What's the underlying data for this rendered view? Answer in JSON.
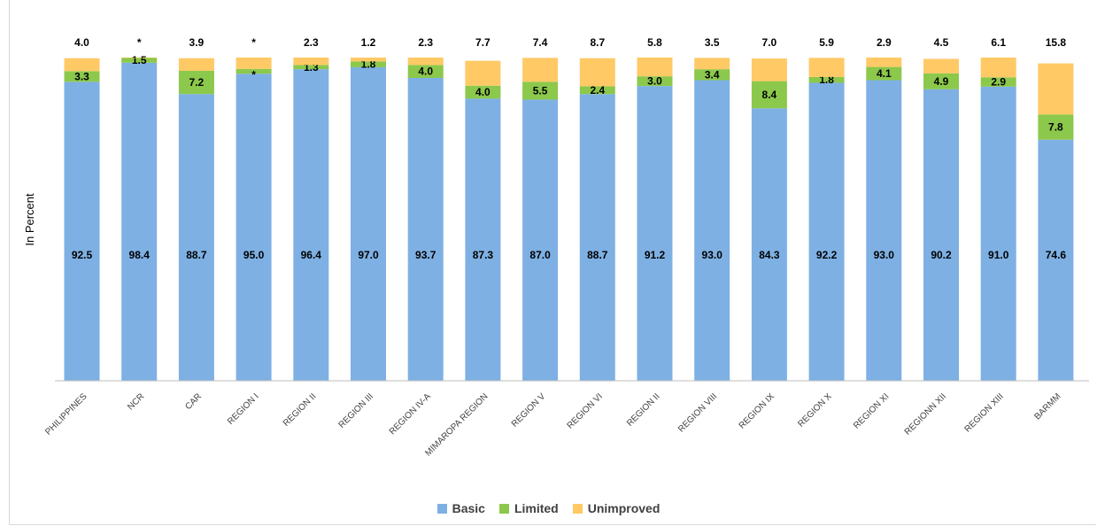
{
  "chart_data": {
    "type": "bar",
    "stacked": true,
    "ylabel": "In Percent",
    "categories": [
      "PHILIPPINES",
      "NCR",
      "CAR",
      "REGION I",
      "REGION II",
      "REGION III",
      "REGION IV-A",
      "MIMAROPA REGION",
      "REGION V",
      "REGION VI",
      "REGION II",
      "REGION VIII",
      "REGION IX",
      "REGION X",
      "REGION XI",
      "REGIONN XII",
      "REGION XIII",
      "BARMM"
    ],
    "series": [
      {
        "name": "Basic",
        "color": "#7eb0e4",
        "values": [
          92.5,
          98.4,
          88.7,
          95.0,
          96.4,
          97.0,
          93.7,
          87.3,
          87.0,
          88.7,
          91.2,
          93.0,
          84.3,
          92.2,
          93.0,
          90.2,
          91.0,
          74.6
        ],
        "labels": [
          "92.5",
          "98.4",
          "88.7",
          "95.0",
          "96.4",
          "97.0",
          "93.7",
          "87.3",
          "87.0",
          "88.7",
          "91.2",
          "93.0",
          "84.3",
          "92.2",
          "93.0",
          "90.2",
          "91.0",
          "74.6"
        ]
      },
      {
        "name": "Limited",
        "color": "#8cc84b",
        "values": [
          3.3,
          1.5,
          7.2,
          1.5,
          1.3,
          1.8,
          4.0,
          4.0,
          5.5,
          2.4,
          3.0,
          3.4,
          8.4,
          1.8,
          4.1,
          4.9,
          2.9,
          7.8
        ],
        "labels": [
          "3.3",
          "1.5",
          "7.2",
          "*",
          "1.3",
          "1.8",
          "4.0",
          "4.0",
          "5.5",
          "2.4",
          "3.0",
          "3.4",
          "8.4",
          "1.8",
          "4.1",
          "4.9",
          "2.9",
          "7.8"
        ]
      },
      {
        "name": "Unimproved",
        "color": "#ffc966",
        "values": [
          4.0,
          0.1,
          3.9,
          3.5,
          2.3,
          1.2,
          2.3,
          7.7,
          7.4,
          8.7,
          5.8,
          3.5,
          7.0,
          5.9,
          2.9,
          4.5,
          6.1,
          15.8
        ],
        "labels": [
          "4.0",
          "*",
          "3.9",
          "*",
          "2.3",
          "1.2",
          "2.3",
          "7.7",
          "7.4",
          "8.7",
          "5.8",
          "3.5",
          "7.0",
          "5.9",
          "2.9",
          "4.5",
          "6.1",
          "15.8"
        ]
      }
    ],
    "ylim": [
      0,
      100
    ],
    "grid": false,
    "legend_position": "bottom"
  }
}
